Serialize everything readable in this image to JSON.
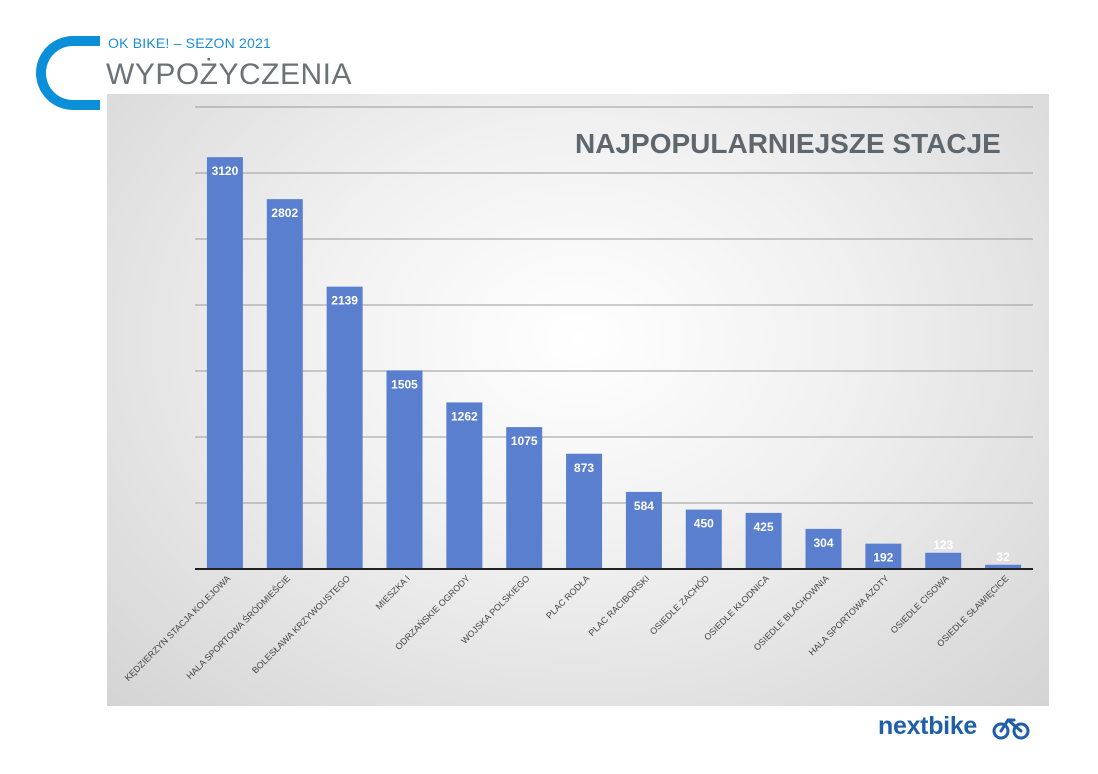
{
  "header": {
    "kicker": "OK BIKE! – SEZON 2021",
    "title": "WYPOŻYCZENIA"
  },
  "logo": {
    "text": "nextbike"
  },
  "colors": {
    "accent": "#0a8fd8",
    "bar": "#5b7fcf",
    "title": "#5e676e"
  },
  "chart_data": {
    "type": "bar",
    "title": "NAJPOPULARNIEJSZE STACJE",
    "xlabel": "",
    "ylabel": "",
    "ylim": [
      0,
      3500
    ],
    "grid": true,
    "categories": [
      "KĘDZIERZYN STACJA KOLEJOWA",
      "HALA SPORTOWA ŚRÓDMIEŚCIE",
      "BOLESŁAWA KRZYWOUSTEGO",
      "MIESZKA I",
      "ODRZAŃSKIE OGRODY",
      "WOJSKA POLSKIEGO",
      "PLAC RODŁA",
      "PLAC RACIBORSKI",
      "OSIEDLE ZACHÓD",
      "OSIEDLE KŁODNICA",
      "OSIEDLE BLACHOWNIA",
      "HALA SPORTOWA AZOTY",
      "OSIEDLE CISOWA",
      "OSIEDLE SŁAWIĘCICE"
    ],
    "values": [
      3120,
      2802,
      2139,
      1505,
      1262,
      1075,
      873,
      584,
      450,
      425,
      304,
      192,
      123,
      32
    ]
  }
}
